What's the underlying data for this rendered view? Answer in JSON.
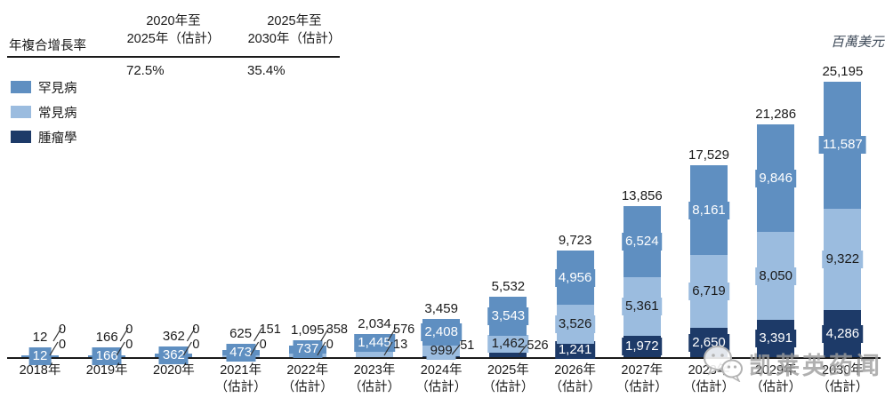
{
  "header": {
    "cagr_label": "年複合增長率",
    "unit_label": "百萬美元",
    "columns": [
      {
        "line1": "2020年至",
        "line2": "2025年（估計）",
        "value": "72.5%"
      },
      {
        "line1": "2025年至",
        "line2": "2030年（估計）",
        "value": "35.4%"
      }
    ]
  },
  "legend": [
    {
      "label": "罕見病",
      "color": "#5f8fc1"
    },
    {
      "label": "常見病",
      "color": "#9bbcdf"
    },
    {
      "label": "腫瘤學",
      "color": "#1d3a68"
    }
  ],
  "watermark": {
    "text": "凯莱英药闻",
    "icon": "wechat-icon"
  },
  "chart_data": {
    "type": "bar",
    "stacked": true,
    "unit": "百萬美元",
    "grid": false,
    "ylim": [
      0,
      25195
    ],
    "cagr": [
      {
        "period": "2020年至2025年（估計）",
        "value": "72.5%"
      },
      {
        "period": "2025年至2030年（估計）",
        "value": "35.4%"
      }
    ],
    "stack_order_bottom_to_top": [
      "腫瘤學",
      "常見病",
      "罕見病"
    ],
    "categories": [
      {
        "label": "2018年",
        "sub": ""
      },
      {
        "label": "2019年",
        "sub": ""
      },
      {
        "label": "2020年",
        "sub": ""
      },
      {
        "label": "2021年",
        "sub": "（估計）"
      },
      {
        "label": "2022年",
        "sub": "（估計）"
      },
      {
        "label": "2023年",
        "sub": "（估計）"
      },
      {
        "label": "2024年",
        "sub": "（估計）"
      },
      {
        "label": "2025年",
        "sub": "（估計）"
      },
      {
        "label": "2026年",
        "sub": "（估計）"
      },
      {
        "label": "2027年",
        "sub": "（估計）"
      },
      {
        "label": "2028年",
        "sub": "（估計）"
      },
      {
        "label": "2029年",
        "sub": "（估計）"
      },
      {
        "label": "2030年",
        "sub": "（估計）"
      }
    ],
    "series": [
      {
        "key": "onc",
        "name": "腫瘤學",
        "color": "#1d3a68",
        "text_color": "#ffffff",
        "values": [
          0,
          0,
          0,
          0,
          0,
          13,
          51,
          526,
          1241,
          1972,
          2650,
          3391,
          4286
        ],
        "labels": [
          "0",
          "0",
          "0",
          "0",
          "0",
          "13",
          "51",
          "526",
          "1,241",
          "1,972",
          "2,650",
          "3,391",
          "4,286"
        ],
        "placement": [
          "out",
          "out",
          "out",
          "out",
          "out",
          "out",
          "out",
          "out",
          "in",
          "in",
          "in",
          "in",
          "in"
        ]
      },
      {
        "key": "common",
        "name": "常見病",
        "color": "#9bbcdf",
        "text_color": "#1a1a1a",
        "values": [
          0,
          0,
          0,
          151,
          358,
          576,
          999,
          1462,
          3526,
          5361,
          6719,
          8050,
          9322
        ],
        "labels": [
          "0",
          "0",
          "0",
          "151",
          "358",
          "576",
          "999",
          "1,462",
          "3,526",
          "5,361",
          "6,719",
          "8,050",
          "9,322"
        ],
        "placement": [
          "out",
          "out",
          "out",
          "out",
          "out",
          "out",
          "in",
          "in",
          "in",
          "in",
          "in",
          "in",
          "in"
        ]
      },
      {
        "key": "rare",
        "name": "罕見病",
        "color": "#5f8fc1",
        "text_color": "#ffffff",
        "values": [
          12,
          166,
          362,
          473,
          737,
          1445,
          2408,
          3543,
          4956,
          6524,
          8161,
          9846,
          11587
        ],
        "labels": [
          "12",
          "166",
          "362",
          "473",
          "737",
          "1,445",
          "2,408",
          "3,543",
          "4,956",
          "6,524",
          "8,161",
          "9,846",
          "11,587"
        ],
        "placement": [
          "in",
          "in",
          "in",
          "in",
          "in",
          "in",
          "in",
          "in",
          "in",
          "in",
          "in",
          "in",
          "in"
        ]
      }
    ],
    "totals": [
      "12",
      "166",
      "362",
      "625",
      "1,095",
      "2,034",
      "3,459",
      "5,532",
      "9,723",
      "13,856",
      "17,529",
      "21,286",
      "25,195"
    ]
  }
}
